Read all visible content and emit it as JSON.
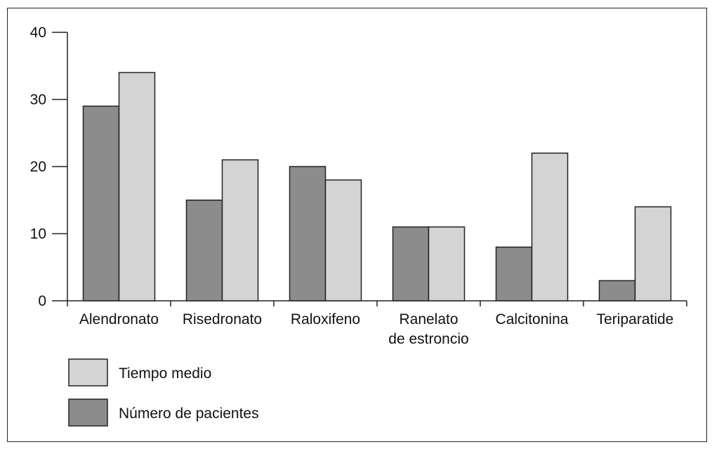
{
  "chart_data": {
    "type": "bar",
    "categories": [
      [
        "Alendronato"
      ],
      [
        "Risedronato"
      ],
      [
        "Raloxifeno"
      ],
      [
        "Ranelato",
        "de estroncio"
      ],
      [
        "Calcitonina"
      ],
      [
        "Teriparatide"
      ]
    ],
    "series": [
      {
        "name": "Número de pacientes",
        "values": [
          29,
          15,
          20,
          11,
          8,
          3
        ],
        "color": "#8c8c8c"
      },
      {
        "name": "Tiempo medio",
        "values": [
          34,
          21,
          18,
          11,
          22,
          14
        ],
        "color": "#d4d4d4"
      }
    ],
    "yticks": [
      "0",
      "10",
      "20",
      "30",
      "40"
    ],
    "ylim": [
      0,
      40
    ],
    "grid": false,
    "legend": {
      "placement": "bottom-left",
      "entries": [
        {
          "label": "Tiempo medio",
          "color": "#d4d4d4"
        },
        {
          "label": "Número de pacientes",
          "color": "#8c8c8c"
        }
      ]
    }
  }
}
